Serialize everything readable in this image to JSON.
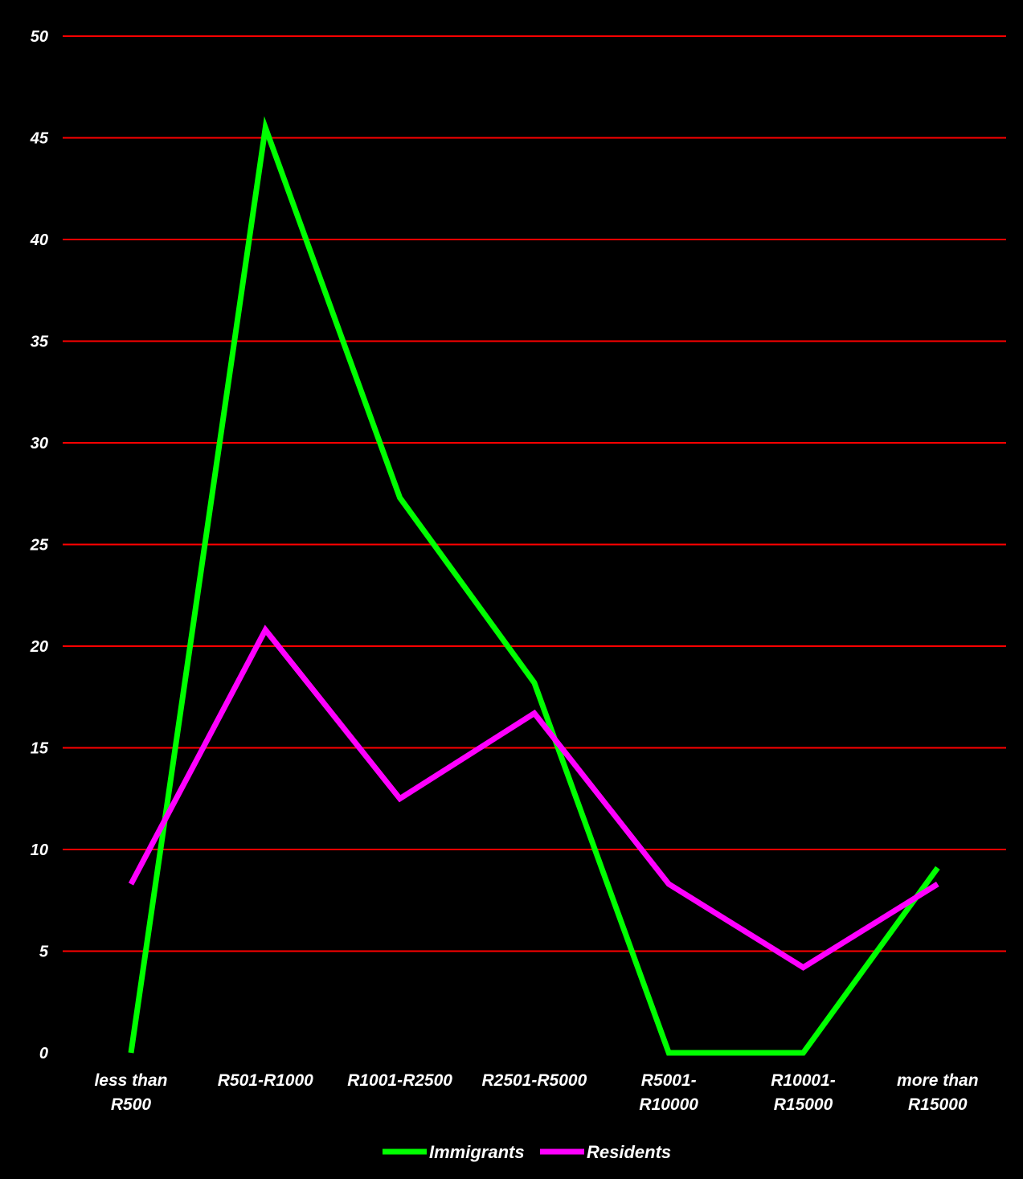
{
  "chart_data": {
    "type": "line",
    "title": "",
    "xlabel": "",
    "ylabel": "",
    "categories": [
      [
        "less than",
        "R500"
      ],
      [
        "R501-R1000"
      ],
      [
        "R1001-R2500"
      ],
      [
        "R2501-R5000"
      ],
      [
        "R5001-",
        "R10000"
      ],
      [
        "R10001-",
        "R15000"
      ],
      [
        "more than",
        "R15000"
      ]
    ],
    "ylim": [
      0,
      50
    ],
    "yticks": [
      0,
      5,
      10,
      15,
      20,
      25,
      30,
      35,
      40,
      45,
      50
    ],
    "grid": true,
    "legend_position": "bottom",
    "series": [
      {
        "name": "Immigrants",
        "color": "#00ff00",
        "values": [
          0,
          45.5,
          27.3,
          18.2,
          0,
          0,
          9.1
        ]
      },
      {
        "name": "Residents",
        "color": "#ff00ff",
        "values": [
          8.3,
          20.8,
          12.5,
          16.7,
          8.3,
          4.2,
          8.3
        ]
      }
    ],
    "colors": {
      "background": "#000000",
      "gridline": "#ff0000",
      "text": "#ffffff"
    }
  }
}
